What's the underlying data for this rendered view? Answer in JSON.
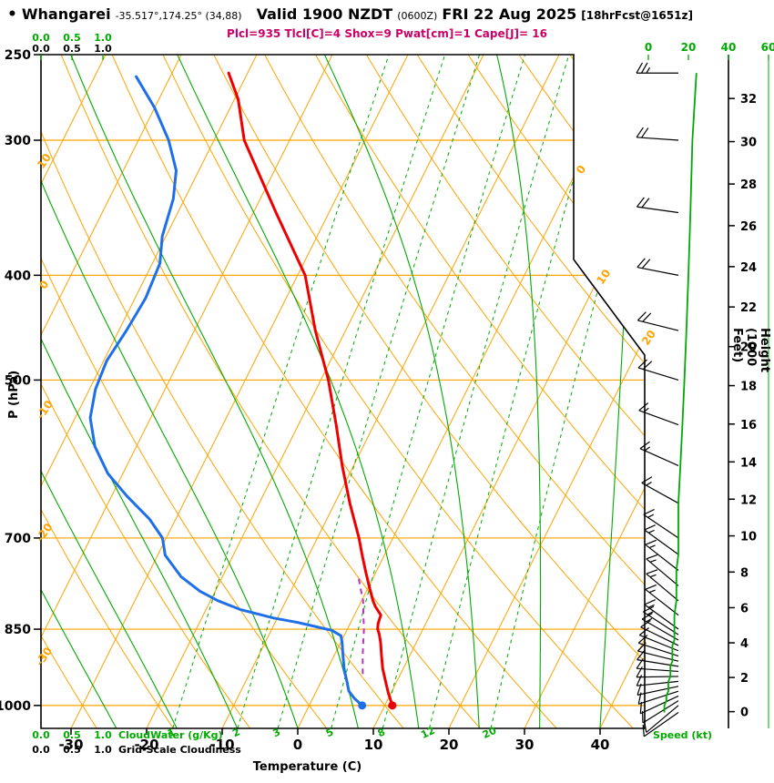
{
  "header": {
    "bullet": "•",
    "station": "Whangarei",
    "coords": "-35.517°,174.25° (34,88)",
    "valid": "Valid 1900 NZDT",
    "valid_utc": "(0600Z)",
    "date": "FRI 22 Aug 2025",
    "fcst": "[18hrFcst@1651z]",
    "params": "Plcl=935 Tlcl[C]=4 Shox=9 Pwat[cm]=1 Cape[J]= 16"
  },
  "axes": {
    "pressure_title": "P (hPa)",
    "height_title": "Height (1000 Feet)",
    "temperature_title": "Temperature (C)",
    "speed_title": "Speed (kt)"
  },
  "legends": {
    "cloudwater_label": "CloudWater (g/Kg)",
    "cloudiness_label": "Grid-Scale Cloudiness"
  },
  "colors": {
    "grid_orange": "#FFA400",
    "line_green": "#00AA00",
    "temperature_red": "#EE0000",
    "dewpoint_blue": "#1E6FE8",
    "parcel_magenta": "#BB33BB",
    "params_magenta": "#CC0066",
    "axis_black": "#000000"
  },
  "chart_data": {
    "type": "line",
    "variant": "skew-t log-p atmospheric sounding",
    "pressure_axis": {
      "unit": "hPa",
      "range": [
        250,
        1050
      ],
      "ticks": [
        250,
        300,
        400,
        500,
        700,
        850,
        1000
      ],
      "gridlines": [
        300,
        400,
        500,
        700,
        850,
        1000
      ]
    },
    "temperature_axis": {
      "unit": "C",
      "ticks": [
        -30,
        -20,
        -10,
        0,
        10,
        20,
        30,
        40
      ]
    },
    "height_axis": {
      "unit": "1000 Feet",
      "ticks": [
        0,
        2,
        4,
        6,
        8,
        10,
        12,
        14,
        16,
        18,
        20,
        22,
        24,
        26,
        28,
        30,
        32
      ]
    },
    "speed_axis": {
      "unit": "kt",
      "ticks": [
        0,
        20,
        40,
        60
      ]
    },
    "cloudwater_axis": {
      "ticks": [
        "0.0",
        "0.5",
        "1.0"
      ]
    },
    "cloudiness_axis": {
      "ticks": [
        "0.0",
        "0.5",
        "1.0"
      ]
    },
    "isotherm_labels": [
      0,
      10,
      20
    ],
    "dry_adiabat_labels": [
      10,
      0,
      -10,
      -20,
      -30
    ],
    "mixing_ratio_lines_g_per_kg": [
      1,
      2,
      3,
      5,
      8,
      12,
      20
    ],
    "moist_adiabat_surface_temps_c": [
      -24,
      -16,
      -8,
      0,
      8,
      16,
      24,
      32,
      40
    ],
    "temperature_profile": [
      [
        1000,
        11
      ],
      [
        975,
        9.7
      ],
      [
        950,
        8.5
      ],
      [
        925,
        7.3
      ],
      [
        900,
        6.3
      ],
      [
        875,
        5.3
      ],
      [
        860,
        4.6
      ],
      [
        850,
        4.0
      ],
      [
        840,
        3.7
      ],
      [
        825,
        3.5
      ],
      [
        810,
        2.2
      ],
      [
        800,
        1.5
      ],
      [
        775,
        0.0
      ],
      [
        750,
        -1.5
      ],
      [
        725,
        -3.0
      ],
      [
        700,
        -4.5
      ],
      [
        650,
        -8.0
      ],
      [
        600,
        -11.5
      ],
      [
        550,
        -15.0
      ],
      [
        500,
        -19.0
      ],
      [
        450,
        -24.0
      ],
      [
        400,
        -29.0
      ],
      [
        350,
        -37.0
      ],
      [
        300,
        -46.0
      ],
      [
        275,
        -49.5
      ],
      [
        260,
        -52.5
      ]
    ],
    "dewpoint_profile": [
      [
        1000,
        7.0
      ],
      [
        985,
        5.5
      ],
      [
        970,
        4.3
      ],
      [
        950,
        3.4
      ],
      [
        925,
        2.2
      ],
      [
        900,
        1.2
      ],
      [
        875,
        0.2
      ],
      [
        862,
        -0.4
      ],
      [
        852,
        -2.0
      ],
      [
        845,
        -4.5
      ],
      [
        838,
        -7.0
      ],
      [
        830,
        -10.5
      ],
      [
        815,
        -15.5
      ],
      [
        800,
        -19.0
      ],
      [
        784,
        -22.0
      ],
      [
        760,
        -25.5
      ],
      [
        726,
        -29.0
      ],
      [
        700,
        -30.5
      ],
      [
        672,
        -33.5
      ],
      [
        640,
        -38.0
      ],
      [
        610,
        -42.0
      ],
      [
        576,
        -45.5
      ],
      [
        542,
        -48.0
      ],
      [
        510,
        -49.2
      ],
      [
        480,
        -49.6
      ],
      [
        450,
        -49.0
      ],
      [
        420,
        -48.6
      ],
      [
        390,
        -49.0
      ],
      [
        368,
        -50.5
      ],
      [
        340,
        -51.5
      ],
      [
        320,
        -53.0
      ],
      [
        300,
        -56.0
      ],
      [
        280,
        -60.0
      ],
      [
        262,
        -64.5
      ]
    ],
    "parcel_path": [
      [
        935,
        5.0
      ],
      [
        900,
        3.8
      ],
      [
        875,
        3.0
      ],
      [
        850,
        2.2
      ],
      [
        825,
        1.2
      ],
      [
        800,
        0.2
      ],
      [
        775,
        -1.2
      ],
      [
        760,
        -2.0
      ]
    ],
    "surface_temp_dot": [
      1000,
      11
    ],
    "surface_dewpoint_dot": [
      1000,
      7
    ],
    "winds_p_dir_kt": [
      [
        1015,
        235,
        8
      ],
      [
        1000,
        230,
        8
      ],
      [
        990,
        238,
        9
      ],
      [
        980,
        245,
        9
      ],
      [
        970,
        252,
        10
      ],
      [
        960,
        258,
        10
      ],
      [
        950,
        264,
        10
      ],
      [
        940,
        269,
        11
      ],
      [
        930,
        274,
        11
      ],
      [
        920,
        279,
        11
      ],
      [
        910,
        284,
        12
      ],
      [
        900,
        288,
        12
      ],
      [
        890,
        292,
        12
      ],
      [
        880,
        296,
        12
      ],
      [
        870,
        300,
        13
      ],
      [
        860,
        303,
        13
      ],
      [
        850,
        306,
        13
      ],
      [
        825,
        308,
        13
      ],
      [
        800,
        310,
        14
      ],
      [
        775,
        310,
        14
      ],
      [
        750,
        308,
        14
      ],
      [
        725,
        306,
        15
      ],
      [
        700,
        304,
        15
      ],
      [
        650,
        299,
        15
      ],
      [
        600,
        294,
        16
      ],
      [
        550,
        290,
        17
      ],
      [
        500,
        287,
        18
      ],
      [
        450,
        284,
        19
      ],
      [
        400,
        281,
        20
      ],
      [
        350,
        278,
        21
      ],
      [
        300,
        274,
        22
      ],
      [
        260,
        270,
        24
      ]
    ]
  }
}
